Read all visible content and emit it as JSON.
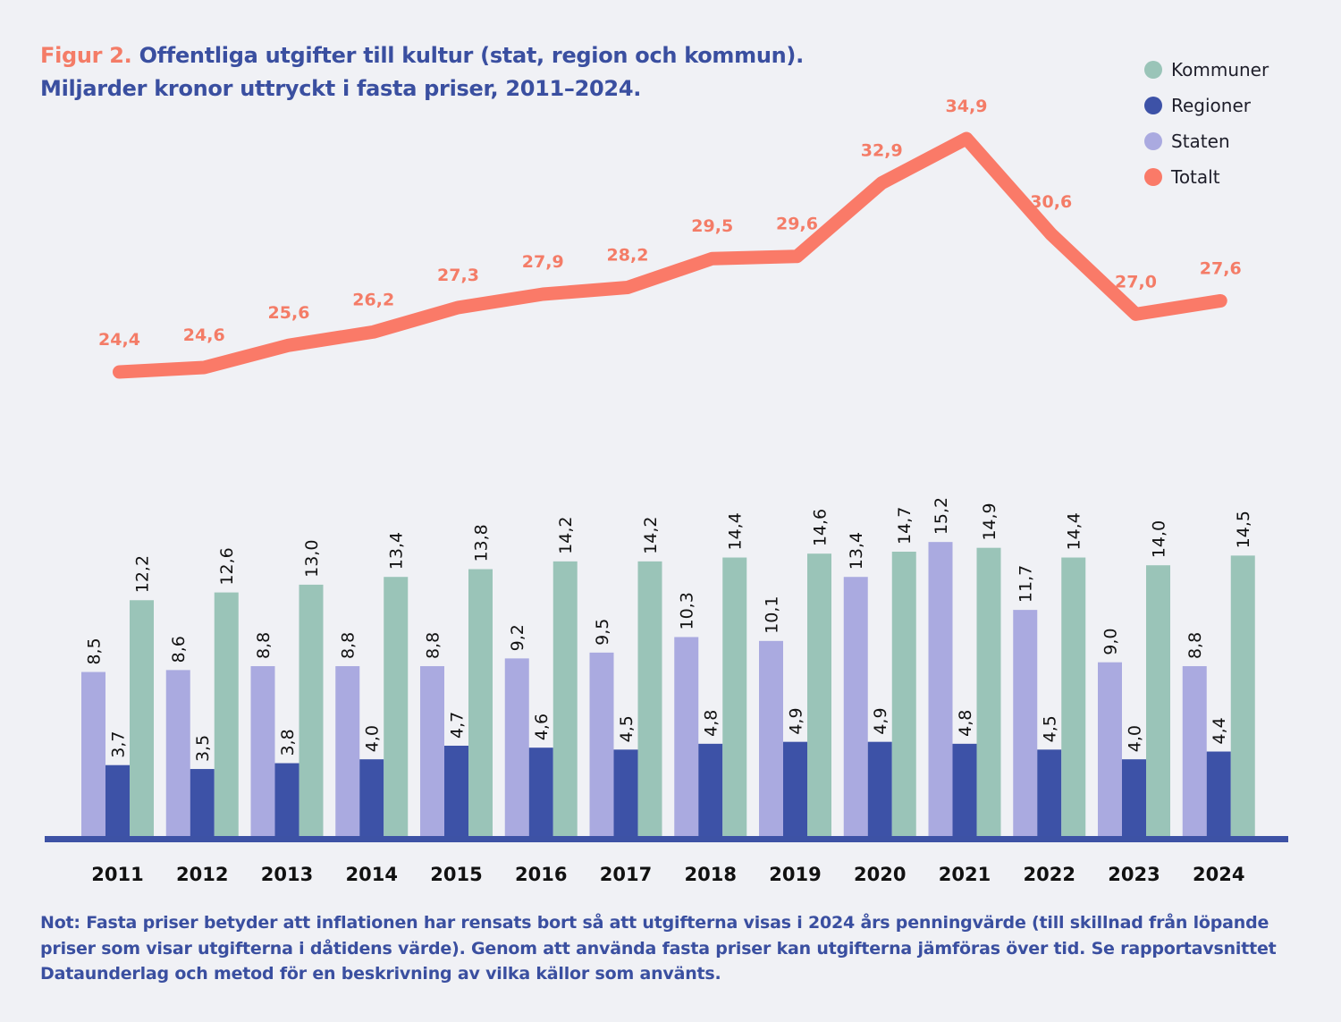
{
  "title": {
    "figure": "Figur 2.",
    "line1": "Offentliga utgifter till kultur (stat, region och kommun).",
    "line2": "Miljarder kronor uttryckt i fasta priser, 2011–2024."
  },
  "note": [
    "Not: Fasta priser betyder att inflationen har rensats bort så att utgifterna visas i 2024 års penningvärde (till skillnad från löpande",
    "priser som visar utgifterna i dåtidens värde). Genom att använda fasta priser kan utgifterna jämföras över tid. Se rapportavsnittet",
    "Dataunderlag och metod för en beskrivning av vilka källor som använts."
  ],
  "chart_data": {
    "type": "bar+line",
    "categories": [
      "2011",
      "2012",
      "2013",
      "2014",
      "2015",
      "2016",
      "2017",
      "2018",
      "2019",
      "2020",
      "2021",
      "2022",
      "2023",
      "2024"
    ],
    "series": [
      {
        "name": "Staten",
        "type": "bar",
        "color": "#aaaae0",
        "values": [
          8.5,
          8.6,
          8.8,
          8.8,
          8.8,
          9.2,
          9.5,
          10.3,
          10.1,
          13.4,
          15.2,
          11.7,
          9.0,
          8.8
        ]
      },
      {
        "name": "Regioner",
        "type": "bar",
        "color": "#3d52a7",
        "values": [
          3.7,
          3.5,
          3.8,
          4.0,
          4.7,
          4.6,
          4.5,
          4.8,
          4.9,
          4.9,
          4.8,
          4.5,
          4.0,
          4.4
        ]
      },
      {
        "name": "Kommuner",
        "type": "bar",
        "color": "#9ac4b8",
        "values": [
          12.2,
          12.6,
          13.0,
          13.4,
          13.8,
          14.2,
          14.2,
          14.4,
          14.6,
          14.7,
          14.9,
          14.4,
          14.0,
          14.5
        ]
      },
      {
        "name": "Totalt",
        "type": "line",
        "color": "#fa7a68",
        "values": [
          24.4,
          24.6,
          25.6,
          26.2,
          27.3,
          27.9,
          28.2,
          29.5,
          29.6,
          32.9,
          34.9,
          30.6,
          27.0,
          27.6
        ]
      }
    ],
    "legend": {
      "placement": "top-right",
      "order": [
        "Kommuner",
        "Regioner",
        "Staten",
        "Totalt"
      ]
    },
    "decimal_separator": ",",
    "grid": false
  }
}
